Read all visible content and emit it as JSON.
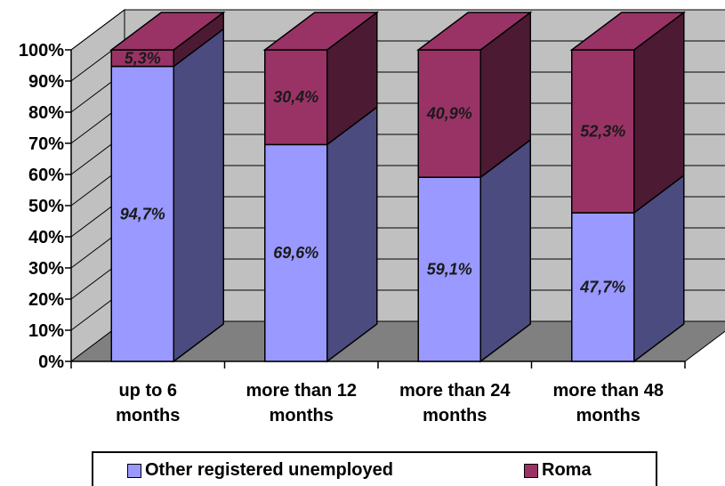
{
  "chart_data": {
    "type": "bar",
    "stacked": true,
    "percent": true,
    "three_d": true,
    "categories": [
      "up to 6 months",
      "more than 12 months",
      "more than 24 months",
      "more than 48 months"
    ],
    "category_lines": [
      [
        "up to 6",
        "months"
      ],
      [
        "more than 12",
        "months"
      ],
      [
        "more than 24",
        "months"
      ],
      [
        "more than 48",
        "months"
      ]
    ],
    "series": [
      {
        "name": "Other registered unemployed",
        "values": [
          94.7,
          69.6,
          59.1,
          47.7
        ],
        "labels": [
          "94,7%",
          "69,6%",
          "59,1%",
          "47,7%"
        ],
        "color": "#9999ff",
        "side_color": "#4b4b80"
      },
      {
        "name": "Roma",
        "values": [
          5.3,
          30.4,
          40.9,
          52.3
        ],
        "labels": [
          "5,3%",
          "30,4%",
          "40,9%",
          "52,3%"
        ],
        "color": "#993366",
        "side_color": "#4d1a33"
      }
    ],
    "yticks": [
      "0%",
      "10%",
      "20%",
      "30%",
      "40%",
      "50%",
      "60%",
      "70%",
      "80%",
      "90%",
      "100%"
    ],
    "ylim": [
      0,
      100
    ],
    "grid": true,
    "wall_color": "#c0c0c0",
    "floor_color": "#808080",
    "legend_position": "bottom"
  }
}
